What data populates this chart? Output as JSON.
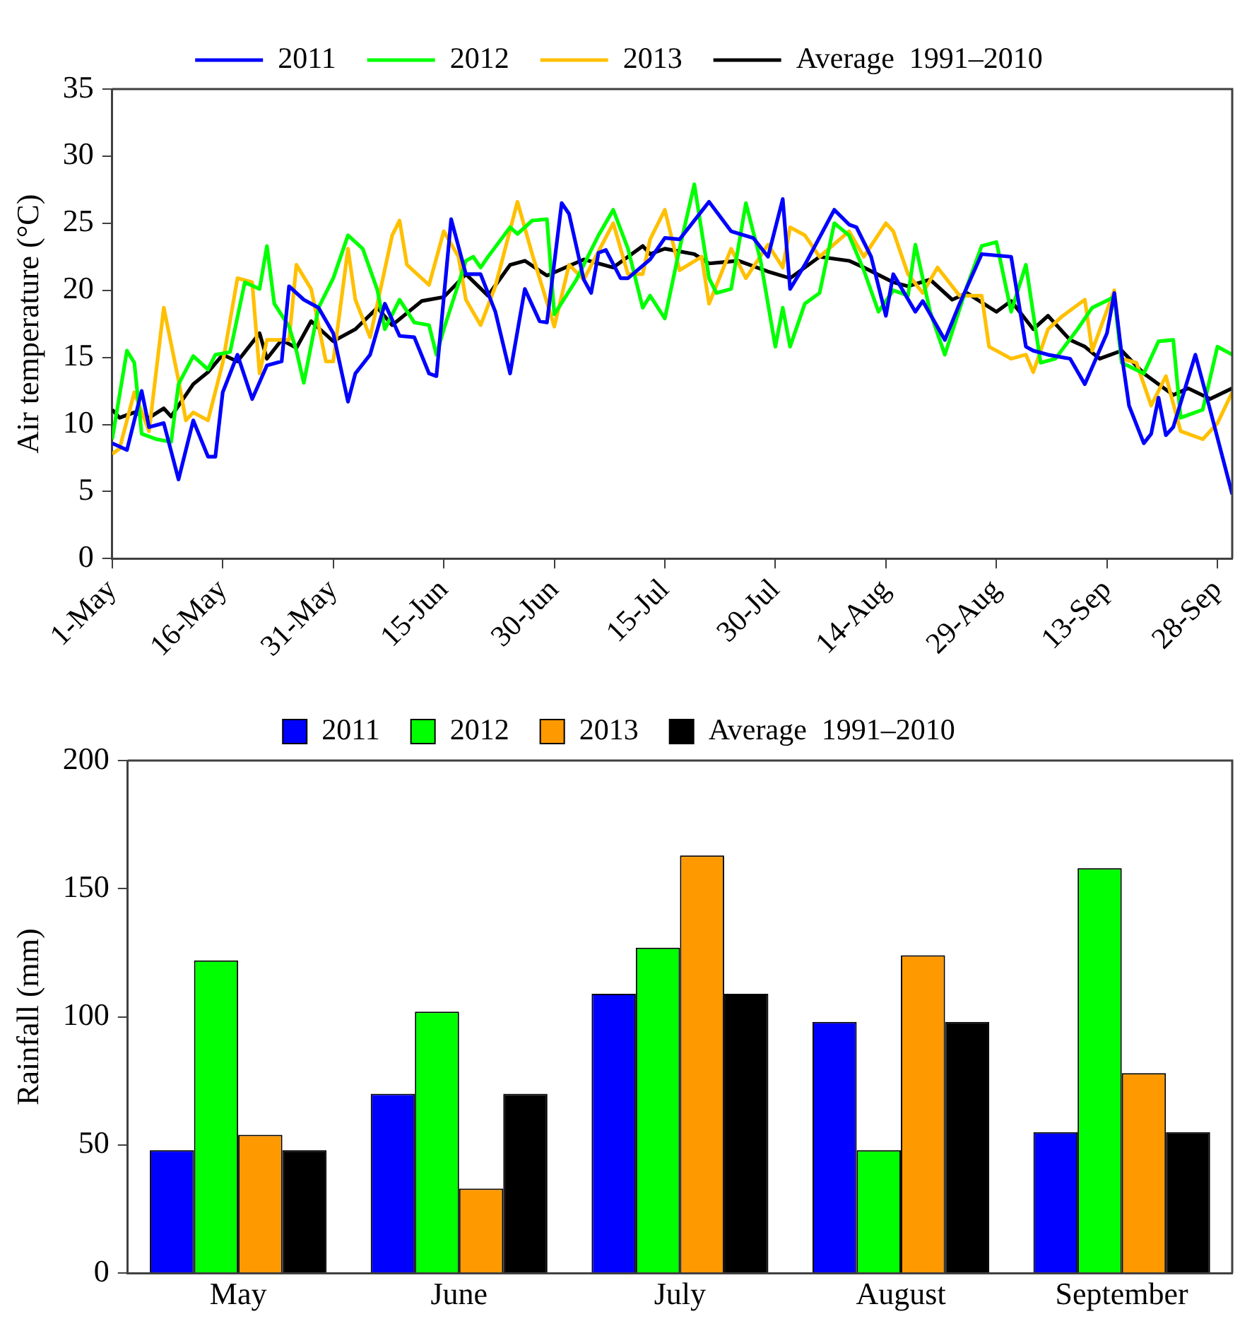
{
  "chart_data": [
    {
      "type": "line",
      "ylabel": "Air temperature (°C)",
      "xlim": [
        "--05-01",
        "--09-30"
      ],
      "xticks": [
        {
          "value": "--05-01",
          "label": "1-May"
        },
        {
          "value": "--05-16",
          "label": "16-May"
        },
        {
          "value": "--05-31",
          "label": "31-May"
        },
        {
          "value": "--06-15",
          "label": "15-Jun"
        },
        {
          "value": "--06-30",
          "label": "30-Jun"
        },
        {
          "value": "--07-15",
          "label": "15-Jul"
        },
        {
          "value": "--07-30",
          "label": "30-Jul"
        },
        {
          "value": "--08-14",
          "label": "14-Aug"
        },
        {
          "value": "--08-29",
          "label": "29-Aug"
        },
        {
          "value": "--09-13",
          "label": "13-Sep"
        },
        {
          "value": "--09-28",
          "label": "28-Sep"
        }
      ],
      "ylim": [
        0,
        35
      ],
      "yticks": [
        0,
        5,
        10,
        15,
        20,
        25,
        30,
        35
      ],
      "grid": false,
      "legend": "top",
      "marker": "none",
      "line_style": "solid",
      "series": [
        {
          "name": "2011",
          "color": "#0000ff",
          "x": [
            "--05-01",
            "--05-03",
            "--05-05",
            "--05-06",
            "--05-08",
            "--05-10",
            "--05-12",
            "--05-14",
            "--05-15",
            "--05-16",
            "--05-18",
            "--05-20",
            "--05-22",
            "--05-24",
            "--05-25",
            "--05-27",
            "--05-29",
            "--05-31",
            "--06-02",
            "--06-03",
            "--06-05",
            "--06-07",
            "--06-09",
            "--06-11",
            "--06-13",
            "--06-14",
            "--06-16",
            "--06-18",
            "--06-20",
            "--06-22",
            "--06-24",
            "--06-26",
            "--06-28",
            "--06-29",
            "--07-01",
            "--07-02",
            "--07-04",
            "--07-05",
            "--07-06",
            "--07-07",
            "--07-09",
            "--07-10",
            "--07-13",
            "--07-15",
            "--07-17",
            "--07-21",
            "--07-24",
            "--07-27",
            "--07-29",
            "--07-31",
            "--08-01",
            "--08-03",
            "--08-07",
            "--08-09",
            "--08-10",
            "--08-12",
            "--08-14",
            "--08-15",
            "--08-18",
            "--08-19",
            "--08-22",
            "--08-24",
            "--08-27",
            "--08-31",
            "--09-02",
            "--09-03",
            "--09-05",
            "--09-08",
            "--09-10",
            "--09-13",
            "--09-14",
            "--09-15",
            "--09-16",
            "--09-18",
            "--09-19",
            "--09-20",
            "--09-21",
            "--09-22",
            "--09-25",
            "--09-27",
            "--09-30"
          ],
          "values": [
            8.6,
            8.1,
            12.5,
            9.8,
            10.1,
            5.9,
            10.3,
            7.6,
            7.6,
            12.4,
            15.2,
            11.9,
            14.4,
            14.7,
            20.3,
            19.3,
            18.7,
            16.8,
            11.7,
            13.8,
            15.2,
            19.0,
            16.6,
            16.5,
            13.8,
            13.6,
            25.3,
            21.2,
            21.2,
            18.4,
            13.8,
            20.1,
            17.7,
            17.6,
            26.5,
            25.7,
            20.8,
            19.8,
            22.8,
            23.0,
            20.9,
            20.9,
            22.3,
            23.9,
            23.8,
            26.6,
            24.4,
            23.9,
            22.5,
            26.8,
            20.1,
            21.9,
            26.0,
            24.9,
            24.7,
            22.5,
            18.1,
            21.2,
            18.4,
            19.2,
            16.3,
            19.0,
            22.7,
            22.5,
            15.8,
            15.5,
            15.2,
            14.9,
            13.0,
            16.8,
            19.8,
            15.2,
            11.4,
            8.6,
            9.3,
            12.0,
            9.2,
            9.8,
            15.2,
            11.1,
            4.8
          ]
        },
        {
          "name": "2012",
          "color": "#00ff00",
          "x": [
            "--05-01",
            "--05-03",
            "--05-04",
            "--05-05",
            "--05-07",
            "--05-09",
            "--05-10",
            "--05-12",
            "--05-14",
            "--05-15",
            "--05-17",
            "--05-19",
            "--05-21",
            "--05-22",
            "--05-23",
            "--05-25",
            "--05-26",
            "--05-27",
            "--05-29",
            "--05-31",
            "--06-02",
            "--06-04",
            "--06-06",
            "--06-07",
            "--06-09",
            "--06-11",
            "--06-13",
            "--06-14",
            "--06-15",
            "--06-18",
            "--06-19",
            "--06-20",
            "--06-21",
            "--06-24",
            "--06-25",
            "--06-27",
            "--06-29",
            "--06-30",
            "--07-03",
            "--07-06",
            "--07-08",
            "--07-10",
            "--07-12",
            "--07-13",
            "--07-15",
            "--07-17",
            "--07-19",
            "--07-21",
            "--07-22",
            "--07-24",
            "--07-26",
            "--07-28",
            "--07-30",
            "--07-31",
            "--08-01",
            "--08-03",
            "--08-05",
            "--08-07",
            "--08-09",
            "--08-11",
            "--08-13",
            "--08-15",
            "--08-17",
            "--08-18",
            "--08-20",
            "--08-22",
            "--08-25",
            "--08-27",
            "--08-29",
            "--08-31",
            "--09-02",
            "--09-04",
            "--09-06",
            "--09-09",
            "--09-11",
            "--09-14",
            "--09-15",
            "--09-18",
            "--09-20",
            "--09-22",
            "--09-23",
            "--09-26",
            "--09-28",
            "--09-30"
          ],
          "values": [
            8.9,
            15.5,
            14.6,
            9.3,
            8.9,
            8.7,
            13.0,
            15.1,
            14.1,
            15.2,
            15.4,
            20.6,
            20.1,
            23.3,
            19.0,
            17.3,
            15.5,
            13.1,
            18.7,
            20.9,
            24.1,
            23.1,
            20.0,
            17.1,
            19.3,
            17.6,
            17.4,
            15.2,
            17.1,
            22.2,
            22.5,
            21.7,
            22.5,
            24.7,
            24.2,
            25.2,
            25.3,
            18.2,
            20.8,
            24.1,
            26.0,
            23.1,
            18.7,
            19.6,
            17.9,
            23.1,
            27.9,
            20.9,
            19.8,
            20.1,
            26.5,
            22.2,
            15.8,
            18.7,
            15.8,
            19.0,
            19.8,
            25.0,
            24.1,
            21.5,
            18.4,
            20.0,
            19.6,
            23.4,
            18.4,
            15.2,
            20.3,
            23.3,
            23.6,
            18.4,
            21.9,
            14.6,
            14.9,
            17.1,
            18.7,
            19.5,
            14.6,
            13.8,
            16.2,
            16.3,
            10.5,
            11.1,
            15.8,
            15.2
          ]
        },
        {
          "name": "2013",
          "color": "#ffc000",
          "x": [
            "--05-01",
            "--05-02",
            "--05-04",
            "--05-06",
            "--05-08",
            "--05-10",
            "--05-11",
            "--05-12",
            "--05-14",
            "--05-16",
            "--05-18",
            "--05-20",
            "--05-21",
            "--05-22",
            "--05-25",
            "--05-26",
            "--05-28",
            "--05-30",
            "--05-31",
            "--06-02",
            "--06-03",
            "--06-05",
            "--06-08",
            "--06-09",
            "--06-10",
            "--06-13",
            "--06-15",
            "--06-17",
            "--06-18",
            "--06-20",
            "--06-22",
            "--06-25",
            "--06-27",
            "--06-30",
            "--07-02",
            "--07-04",
            "--07-08",
            "--07-10",
            "--07-12",
            "--07-13",
            "--07-15",
            "--07-17",
            "--07-20",
            "--07-21",
            "--07-24",
            "--07-26",
            "--07-29",
            "--07-31",
            "--08-01",
            "--08-03",
            "--08-05",
            "--08-09",
            "--08-11",
            "--08-14",
            "--08-15",
            "--08-17",
            "--08-19",
            "--08-21",
            "--08-24",
            "--08-27",
            "--08-28",
            "--08-31",
            "--09-02",
            "--09-03",
            "--09-05",
            "--09-07",
            "--09-10",
            "--09-11",
            "--09-14",
            "--09-15",
            "--09-17",
            "--09-19",
            "--09-21",
            "--09-23",
            "--09-26",
            "--09-28",
            "--09-30"
          ],
          "values": [
            7.8,
            8.2,
            12.4,
            9.5,
            18.7,
            13.3,
            10.3,
            10.9,
            10.3,
            14.6,
            20.9,
            20.6,
            13.8,
            16.3,
            16.3,
            21.9,
            20.1,
            14.7,
            14.7,
            23.1,
            19.3,
            16.5,
            24.1,
            25.2,
            21.9,
            20.4,
            24.4,
            22.5,
            19.3,
            17.4,
            20.3,
            26.6,
            22.7,
            17.3,
            21.9,
            20.8,
            25.0,
            21.2,
            21.2,
            23.8,
            26.0,
            21.5,
            22.5,
            19.0,
            23.1,
            20.9,
            23.4,
            21.7,
            24.7,
            24.1,
            22.5,
            24.4,
            22.5,
            25.0,
            24.4,
            21.2,
            19.8,
            21.7,
            19.6,
            19.6,
            15.8,
            14.9,
            15.2,
            13.9,
            17.1,
            18.1,
            19.3,
            15.5,
            20.0,
            14.9,
            14.6,
            11.4,
            13.6,
            9.5,
            8.9,
            10.1,
            12.4
          ]
        },
        {
          "name": "Average  1991–2010",
          "color": "#000000",
          "x": [
            "--05-01",
            "--05-02",
            "--05-04",
            "--05-06",
            "--05-08",
            "--05-09",
            "--05-12",
            "--05-14",
            "--05-16",
            "--05-18",
            "--05-21",
            "--05-22",
            "--05-24",
            "--05-26",
            "--05-28",
            "--05-31",
            "--06-03",
            "--06-06",
            "--06-08",
            "--06-12",
            "--06-15",
            "--06-18",
            "--06-21",
            "--06-24",
            "--06-26",
            "--06-29",
            "--07-04",
            "--07-08",
            "--07-12",
            "--07-13",
            "--07-15",
            "--07-19",
            "--07-21",
            "--07-25",
            "--07-29",
            "--08-01",
            "--08-05",
            "--08-09",
            "--08-11",
            "--08-15",
            "--08-17",
            "--08-20",
            "--08-23",
            "--08-25",
            "--08-29",
            "--08-31",
            "--09-03",
            "--09-05",
            "--09-08",
            "--09-10",
            "--09-12",
            "--09-15",
            "--09-18",
            "--09-22",
            "--09-24",
            "--09-27",
            "--09-30"
          ],
          "values": [
            11.1,
            10.5,
            10.9,
            10.5,
            11.2,
            10.6,
            13.0,
            13.9,
            15.2,
            14.7,
            16.8,
            14.9,
            16.3,
            15.7,
            17.7,
            16.2,
            17.1,
            18.7,
            17.4,
            19.2,
            19.5,
            21.2,
            19.6,
            21.9,
            22.2,
            21.1,
            22.3,
            21.7,
            23.3,
            22.7,
            23.1,
            22.7,
            22.0,
            22.2,
            21.4,
            20.9,
            22.5,
            22.2,
            21.7,
            20.6,
            20.3,
            20.8,
            19.3,
            19.8,
            18.4,
            19.2,
            17.1,
            18.1,
            16.3,
            15.8,
            14.9,
            15.5,
            13.8,
            12.2,
            12.7,
            11.9,
            12.7
          ]
        }
      ]
    },
    {
      "type": "bar",
      "ylabel": "Rainfall (mm)",
      "categories": [
        "May",
        "June",
        "July",
        "August",
        "September"
      ],
      "ylim": [
        0,
        200
      ],
      "yticks": [
        0,
        50,
        100,
        150,
        200
      ],
      "grid": false,
      "legend": "top",
      "series": [
        {
          "name": "2011",
          "color": "#0000ff",
          "values": [
            48,
            70,
            109,
            98,
            55
          ]
        },
        {
          "name": "2012",
          "color": "#00ff00",
          "values": [
            122,
            102,
            127,
            48,
            158
          ]
        },
        {
          "name": "2013",
          "color": "#ff9900",
          "values": [
            54,
            33,
            163,
            124,
            78
          ]
        },
        {
          "name": "Average  1991–2010",
          "color": "#000000",
          "values": [
            48,
            70,
            109,
            98,
            55
          ]
        }
      ]
    }
  ]
}
